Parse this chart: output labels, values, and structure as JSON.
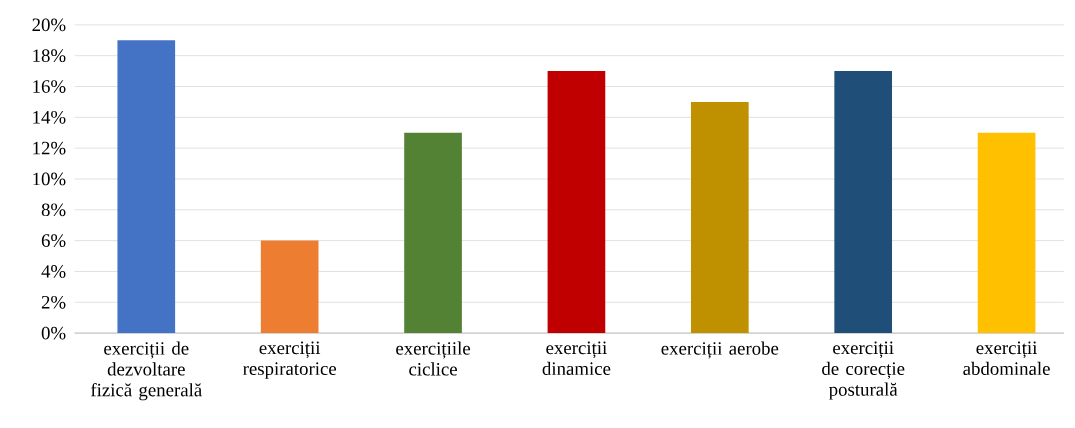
{
  "chart_data": {
    "type": "bar",
    "categories": [
      "exerciții de dezvoltare fizică generală",
      "exerciții respiratorice",
      "exercițiile ciclice",
      "exerciții dinamice",
      "exerciții aerobe",
      "exerciții de corecție posturală",
      "exerciții abdominale"
    ],
    "values": [
      19,
      6,
      13,
      17,
      15,
      17,
      13
    ],
    "colors": [
      "#4472c4",
      "#ed7d31",
      "#548235",
      "#c00000",
      "#bf9000",
      "#1f4e79",
      "#ffc000"
    ],
    "ylim": [
      0,
      20
    ],
    "yticks": [
      {
        "value": 0,
        "label": "0%"
      },
      {
        "value": 2,
        "label": "2%"
      },
      {
        "value": 4,
        "label": "4%"
      },
      {
        "value": 6,
        "label": "6%"
      },
      {
        "value": 8,
        "label": "8%"
      },
      {
        "value": 10,
        "label": "10%"
      },
      {
        "value": 12,
        "label": "12%"
      },
      {
        "value": 14,
        "label": "14%"
      },
      {
        "value": 16,
        "label": "16%"
      },
      {
        "value": 18,
        "label": "18%"
      },
      {
        "value": 20,
        "label": "20%"
      }
    ],
    "grid": "y"
  }
}
